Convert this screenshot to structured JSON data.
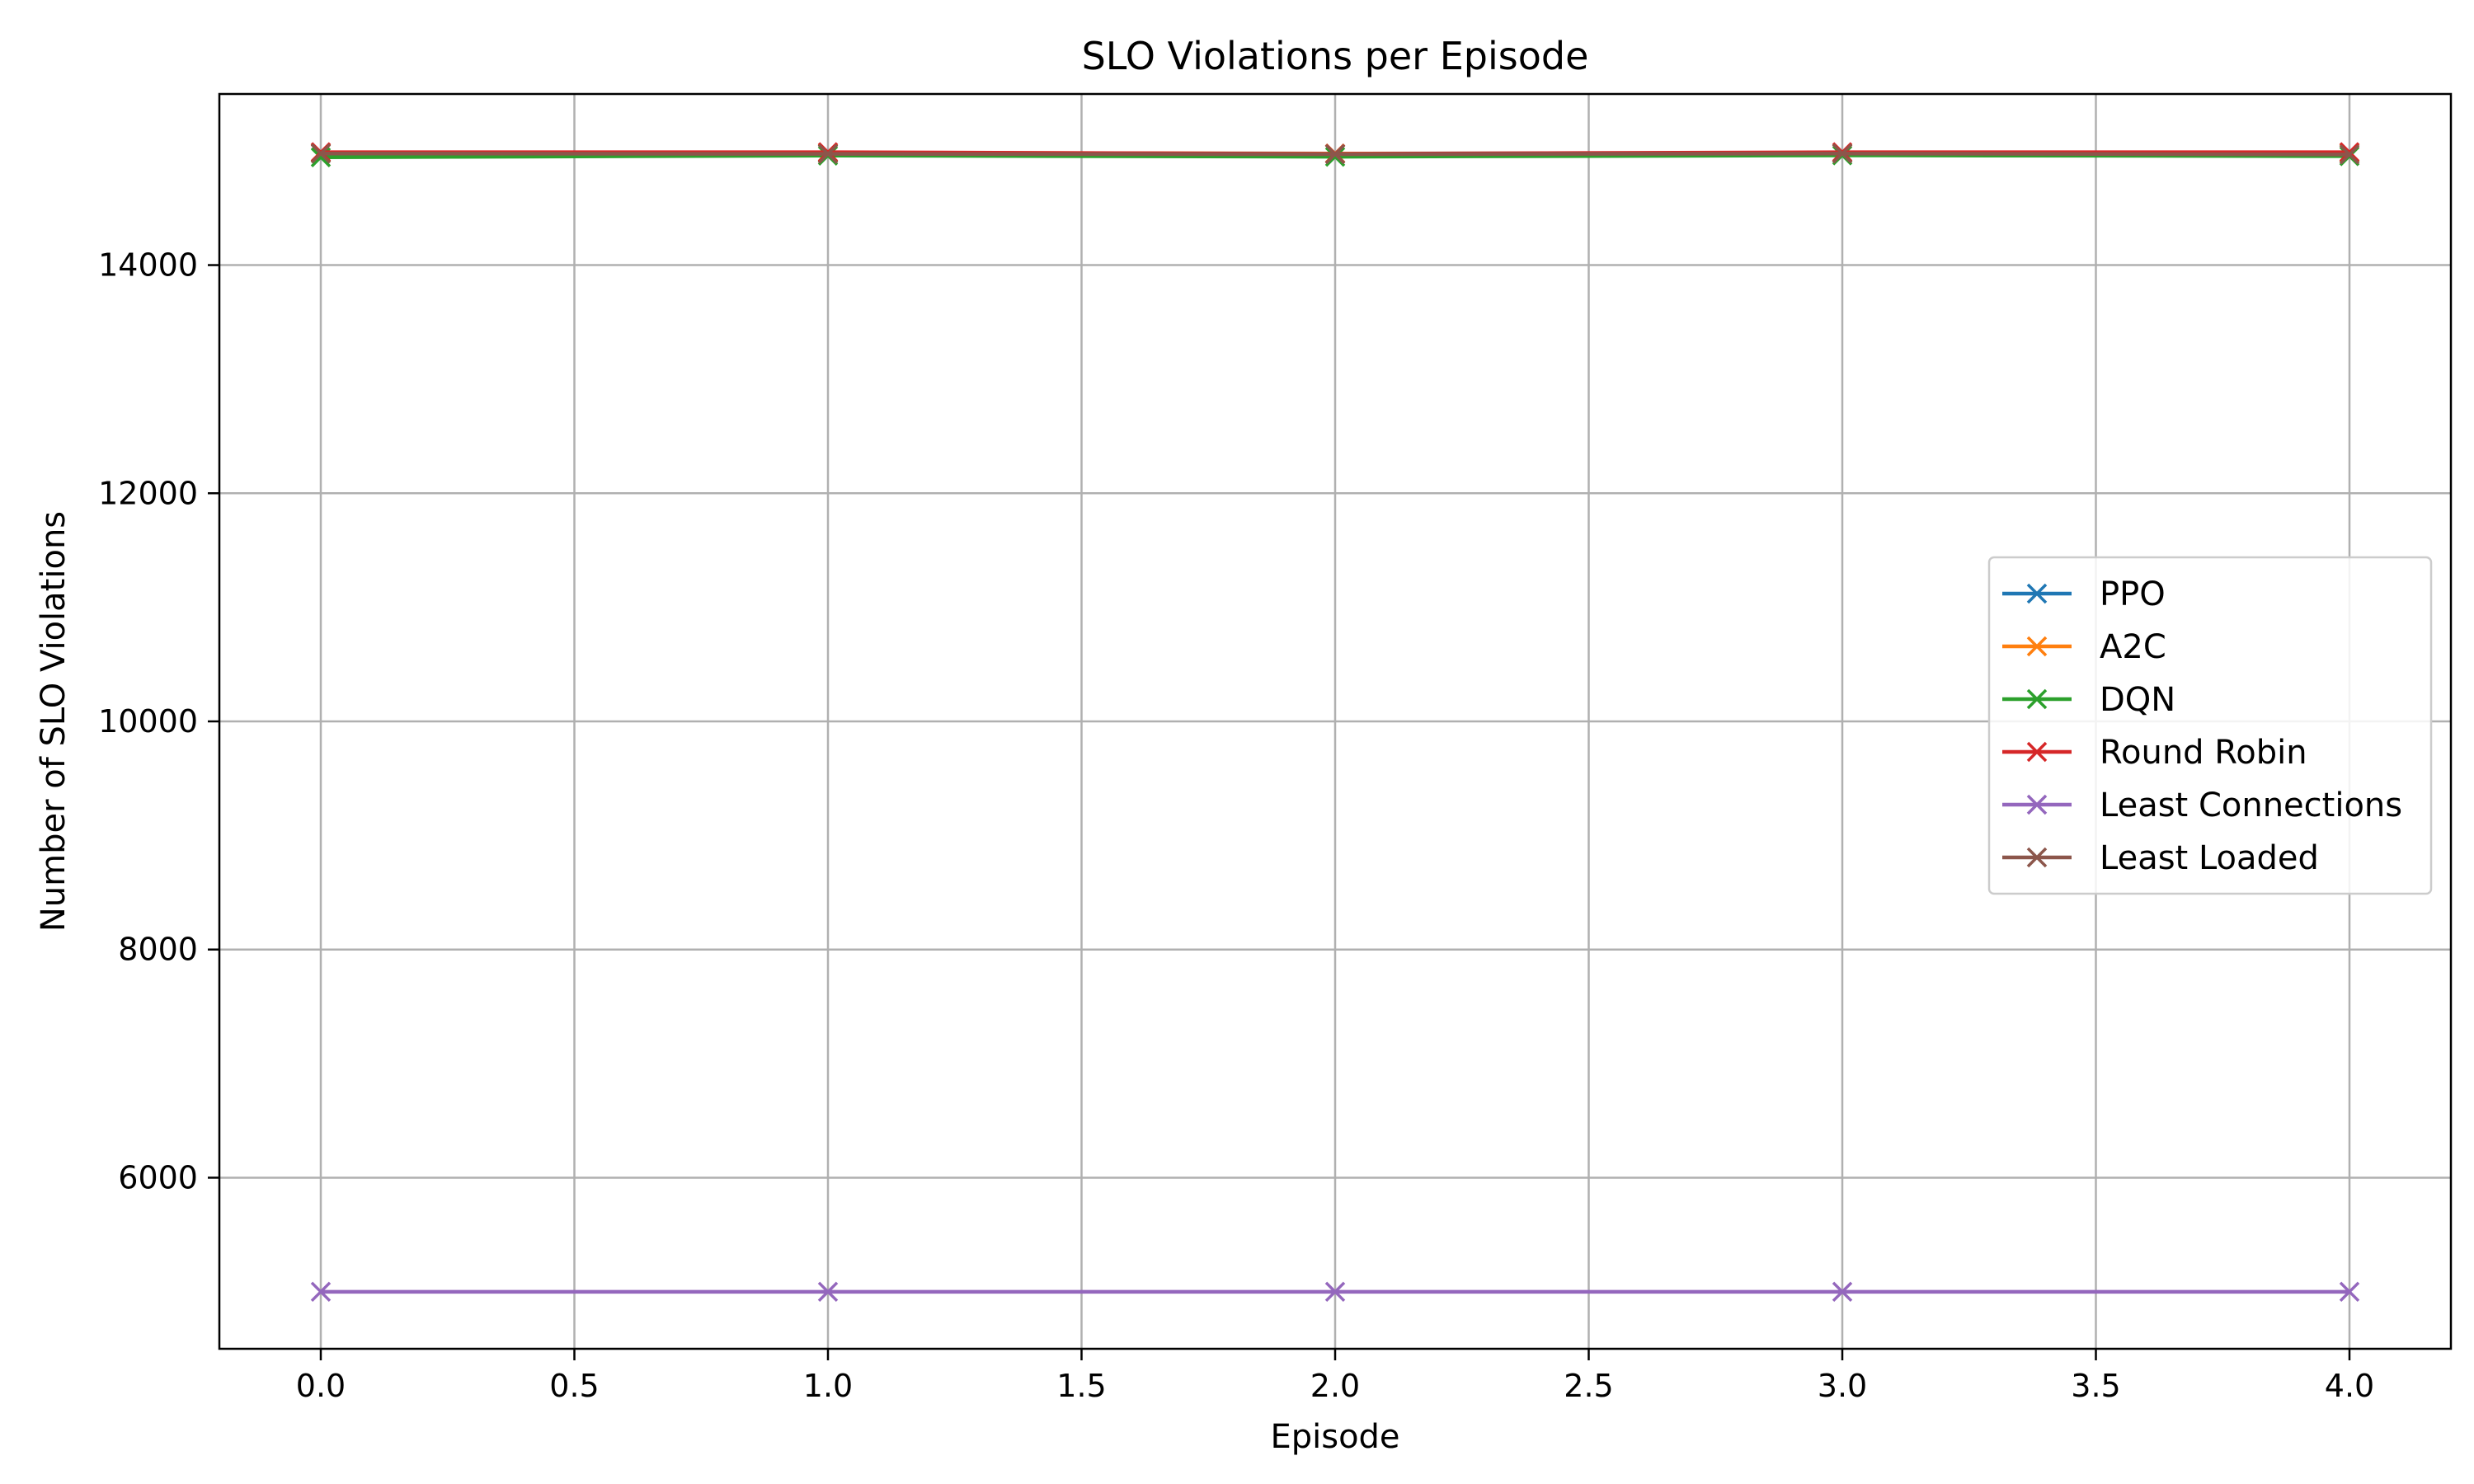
{
  "chart_data": {
    "type": "line",
    "title": "SLO Violations per Episode",
    "xlabel": "Episode",
    "ylabel": "Number of SLO Violations",
    "xlim": [
      -0.2,
      4.2
    ],
    "ylim": [
      4500,
      15500
    ],
    "xticks": [
      0.0,
      0.5,
      1.0,
      1.5,
      2.0,
      2.5,
      3.0,
      3.5,
      4.0
    ],
    "xtick_labels": [
      "0.0",
      "0.5",
      "1.0",
      "1.5",
      "2.0",
      "2.5",
      "3.0",
      "3.5",
      "4.0"
    ],
    "yticks": [
      6000,
      8000,
      10000,
      12000,
      14000
    ],
    "ytick_labels": [
      "6000",
      "8000",
      "10000",
      "12000",
      "14000"
    ],
    "grid": true,
    "marker": "x",
    "legend_position": "center-right",
    "x": [
      0,
      1,
      2,
      3,
      4
    ],
    "series": [
      {
        "name": "PPO",
        "color": "#1f77b4",
        "values": [
          14985,
          14980,
          14978,
          14982,
          14980
        ]
      },
      {
        "name": "A2C",
        "color": "#ff7f0e",
        "values": [
          14982,
          14985,
          14978,
          14980,
          14983
        ]
      },
      {
        "name": "DQN",
        "color": "#2ca02c",
        "values": [
          14945,
          14960,
          14950,
          14962,
          14955
        ]
      },
      {
        "name": "Round Robin",
        "color": "#d62728",
        "values": [
          14990,
          14990,
          14975,
          14990,
          14990
        ]
      },
      {
        "name": "Least Connections",
        "color": "#9467bd",
        "values": [
          5000,
          5000,
          5000,
          5000,
          5000
        ]
      },
      {
        "name": "Least Loaded",
        "color": "#8c564b",
        "values": [
          14978,
          14975,
          14972,
          14978,
          14970
        ]
      }
    ]
  }
}
